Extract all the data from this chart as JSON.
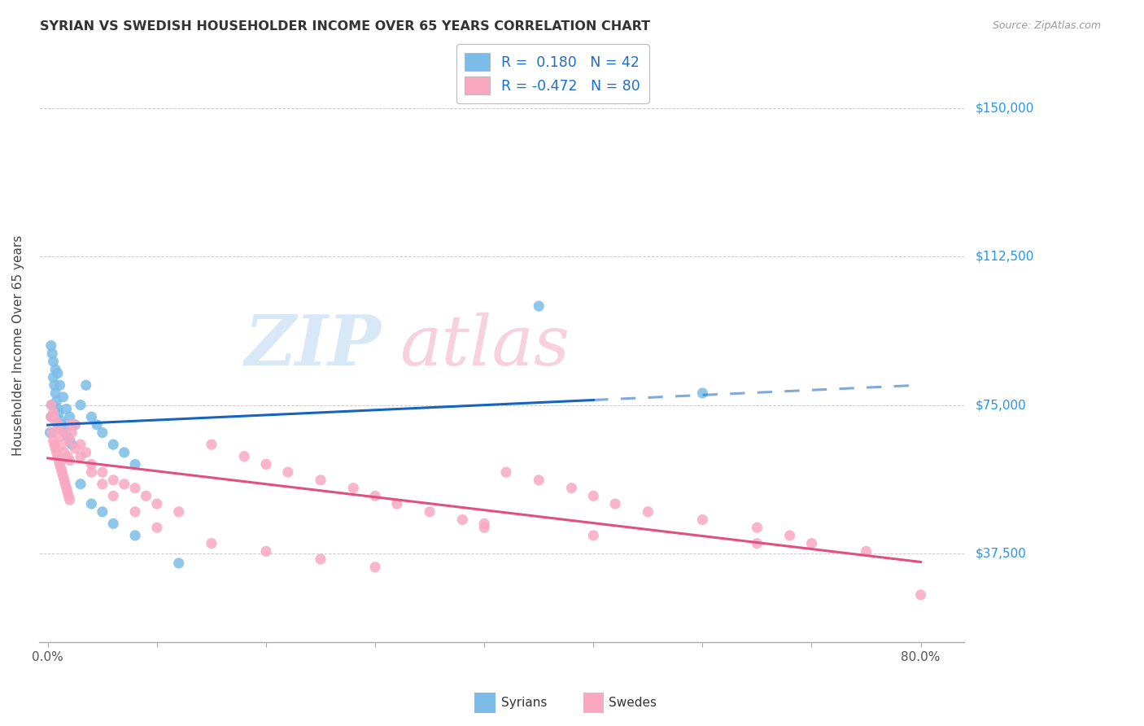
{
  "title": "SYRIAN VS SWEDISH HOUSEHOLDER INCOME OVER 65 YEARS CORRELATION CHART",
  "source": "Source: ZipAtlas.com",
  "ylabel": "Householder Income Over 65 years",
  "y_tick_labels": [
    "$37,500",
    "$75,000",
    "$112,500",
    "$150,000"
  ],
  "y_tick_values": [
    37500,
    75000,
    112500,
    150000
  ],
  "ylim": [
    15000,
    165000
  ],
  "xlim": [
    -0.008,
    0.84
  ],
  "r_syrian": 0.18,
  "r_swede": -0.472,
  "n_syrian": 42,
  "n_swede": 80,
  "color_syrian": "#7bbde8",
  "color_swede": "#f9a8c0",
  "color_syrian_line": "#1565C0",
  "color_swede_line": "#e05080",
  "watermark_zip": "ZIP",
  "watermark_atlas": "atlas",
  "legend_label_syrian": "R =  0.180   N = 42",
  "legend_label_swede": "R = -0.472   N = 80",
  "syrian_x": [
    0.002,
    0.003,
    0.004,
    0.005,
    0.006,
    0.007,
    0.008,
    0.009,
    0.01,
    0.012,
    0.013,
    0.015,
    0.016,
    0.018,
    0.02,
    0.022,
    0.003,
    0.004,
    0.005,
    0.007,
    0.009,
    0.011,
    0.014,
    0.017,
    0.02,
    0.025,
    0.03,
    0.035,
    0.04,
    0.045,
    0.05,
    0.06,
    0.07,
    0.08,
    0.03,
    0.04,
    0.05,
    0.06,
    0.08,
    0.12,
    0.45,
    0.6
  ],
  "syrian_y": [
    68000,
    72000,
    75000,
    82000,
    80000,
    78000,
    76000,
    74000,
    73000,
    71000,
    70000,
    69000,
    68000,
    67000,
    66000,
    65000,
    90000,
    88000,
    86000,
    84000,
    83000,
    80000,
    77000,
    74000,
    72000,
    70000,
    75000,
    80000,
    72000,
    70000,
    68000,
    65000,
    63000,
    60000,
    55000,
    50000,
    48000,
    45000,
    42000,
    35000,
    100000,
    78000
  ],
  "swede_x": [
    0.003,
    0.004,
    0.005,
    0.006,
    0.007,
    0.008,
    0.009,
    0.01,
    0.011,
    0.012,
    0.013,
    0.014,
    0.015,
    0.016,
    0.017,
    0.018,
    0.019,
    0.02,
    0.021,
    0.022,
    0.003,
    0.005,
    0.007,
    0.009,
    0.011,
    0.013,
    0.015,
    0.018,
    0.02,
    0.025,
    0.03,
    0.035,
    0.04,
    0.05,
    0.06,
    0.07,
    0.08,
    0.09,
    0.1,
    0.12,
    0.15,
    0.18,
    0.2,
    0.22,
    0.25,
    0.28,
    0.3,
    0.32,
    0.35,
    0.38,
    0.4,
    0.42,
    0.45,
    0.48,
    0.5,
    0.52,
    0.55,
    0.6,
    0.65,
    0.68,
    0.7,
    0.75,
    0.01,
    0.015,
    0.02,
    0.025,
    0.03,
    0.04,
    0.05,
    0.06,
    0.08,
    0.1,
    0.15,
    0.2,
    0.25,
    0.3,
    0.4,
    0.5,
    0.65,
    0.8
  ],
  "swede_y": [
    72000,
    68000,
    66000,
    65000,
    64000,
    63000,
    62000,
    61000,
    60000,
    59000,
    58000,
    57000,
    56000,
    55000,
    54000,
    53000,
    52000,
    51000,
    70000,
    68000,
    75000,
    73000,
    71000,
    69000,
    67000,
    65000,
    63000,
    62000,
    61000,
    70000,
    65000,
    63000,
    60000,
    58000,
    56000,
    55000,
    54000,
    52000,
    50000,
    48000,
    65000,
    62000,
    60000,
    58000,
    56000,
    54000,
    52000,
    50000,
    48000,
    46000,
    44000,
    58000,
    56000,
    54000,
    52000,
    50000,
    48000,
    46000,
    44000,
    42000,
    40000,
    38000,
    70000,
    68000,
    66000,
    64000,
    62000,
    58000,
    55000,
    52000,
    48000,
    44000,
    40000,
    38000,
    36000,
    34000,
    45000,
    42000,
    40000,
    27000
  ]
}
